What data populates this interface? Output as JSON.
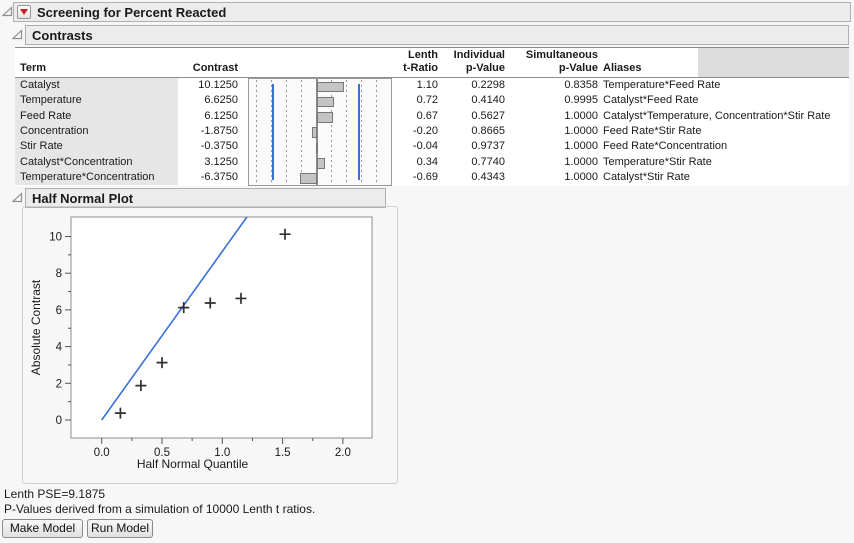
{
  "window_title": "Screening for Percent Reacted",
  "sections": {
    "contrasts": "Contrasts",
    "half_normal": "Half Normal Plot"
  },
  "table": {
    "headers": {
      "term": "Term",
      "contrast": "Contrast",
      "lenth_line1": "Lenth",
      "lenth_line2": "t-Ratio",
      "individual_line1": "Individual",
      "individual_line2": "p-Value",
      "simultaneous_line1": "Simultaneous",
      "simultaneous_line2": "p-Value",
      "aliases": "Aliases"
    },
    "rows": [
      {
        "term": "Catalyst",
        "contrast": "10.1250",
        "value": 10.125,
        "t_ratio": "1.10",
        "p_individual": "0.2298",
        "p_simultaneous": "0.8358",
        "aliases": "Temperature*Feed Rate"
      },
      {
        "term": "Temperature",
        "contrast": "6.6250",
        "value": 6.625,
        "t_ratio": "0.72",
        "p_individual": "0.4140",
        "p_simultaneous": "0.9995",
        "aliases": "Catalyst*Feed Rate"
      },
      {
        "term": "Feed Rate",
        "contrast": "6.1250",
        "value": 6.125,
        "t_ratio": "0.67",
        "p_individual": "0.5627",
        "p_simultaneous": "1.0000",
        "aliases": "Catalyst*Temperature, Concentration*Stir Rate"
      },
      {
        "term": "Concentration",
        "contrast": "-1.8750",
        "value": -1.875,
        "t_ratio": "-0.20",
        "p_individual": "0.8665",
        "p_simultaneous": "1.0000",
        "aliases": "Feed Rate*Stir Rate"
      },
      {
        "term": "Stir Rate",
        "contrast": "-0.3750",
        "value": -0.375,
        "t_ratio": "-0.04",
        "p_individual": "0.9737",
        "p_simultaneous": "1.0000",
        "aliases": "Feed Rate*Concentration"
      },
      {
        "term": "Catalyst*Concentration",
        "contrast": "3.1250",
        "value": 3.125,
        "t_ratio": "0.34",
        "p_individual": "0.7740",
        "p_simultaneous": "1.0000",
        "aliases": "Temperature*Stir Rate"
      },
      {
        "term": "Temperature*Concentration",
        "contrast": "-6.3750",
        "value": -6.375,
        "t_ratio": "-0.69",
        "p_individual": "0.4343",
        "p_simultaneous": "1.0000",
        "aliases": "Catalyst*Stir Rate"
      }
    ],
    "bar_plot": {
      "blue_limit_value": 16.1,
      "axis_center_value": 0
    }
  },
  "chart_data": {
    "type": "scatter",
    "title": "Half Normal Plot",
    "xlabel": "Half Normal Quantile",
    "ylabel": "Absolute Contrast",
    "xlim": [
      -0.25,
      2.24
    ],
    "ylim": [
      -1.0,
      11.06
    ],
    "x_ticks": [
      0.0,
      0.5,
      1.0,
      1.5,
      2.0
    ],
    "x_tick_labels": [
      "0.0",
      "0.5",
      "1.0",
      "1.5",
      "2.0"
    ],
    "x_minor_ticks": [
      0.25,
      0.75,
      1.25,
      1.75
    ],
    "y_ticks": [
      0,
      2,
      4,
      6,
      8,
      10
    ],
    "y_minor_ticks": [
      1,
      3,
      5,
      7,
      9
    ],
    "grid": false,
    "points": [
      {
        "x": 0.155,
        "y": 0.375
      },
      {
        "x": 0.325,
        "y": 1.875
      },
      {
        "x": 0.5,
        "y": 3.125
      },
      {
        "x": 0.68,
        "y": 6.125
      },
      {
        "x": 0.9,
        "y": 6.375
      },
      {
        "x": 1.155,
        "y": 6.625
      },
      {
        "x": 1.52,
        "y": 10.125
      }
    ],
    "fit_line": {
      "slope": 9.1875,
      "intercept": 0
    }
  },
  "footer": {
    "pse": "Lenth PSE=9.1875",
    "note": "P-Values derived from a simulation of 10000 Lenth t ratios.",
    "make_model": "Make Model",
    "run_model": "Run Model"
  },
  "colors": {
    "accent_blue": "#3a6fd6",
    "bar_fill": "#c4c4c4",
    "bar_border": "#787878",
    "marker": "#2f2f2f",
    "red_triangle": "#cc1f1f"
  }
}
